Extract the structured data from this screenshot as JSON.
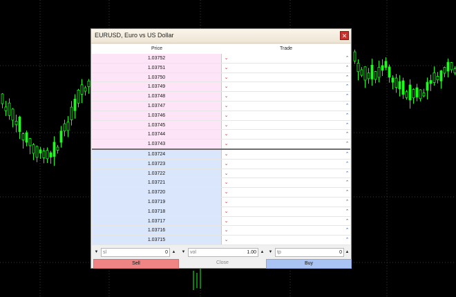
{
  "window": {
    "title": "EURUSD, Euro vs US Dollar",
    "close_glyph": "✕"
  },
  "grid": {
    "price_header": "Price",
    "trade_header": "Trade",
    "ask_prices": [
      "1.03752",
      "1.03751",
      "1.03750",
      "1.03749",
      "1.03748",
      "1.03747",
      "1.03746",
      "1.03745",
      "1.03744",
      "1.03743"
    ],
    "bid_prices": [
      "1.03724",
      "1.03723",
      "1.03722",
      "1.03721",
      "1.03720",
      "1.03719",
      "1.03718",
      "1.03717",
      "1.03716",
      "1.03715"
    ],
    "sell_arrow_glyph": "⌄",
    "buy_arrow_glyph": "⌃"
  },
  "controls": {
    "sl": {
      "label": "sl",
      "value": "0"
    },
    "vol": {
      "label": "vol",
      "value": "1.00"
    },
    "tp": {
      "label": "tp",
      "value": "0"
    },
    "down_glyph": "▼",
    "up_glyph": "▲"
  },
  "buttons": {
    "sell": "Sell",
    "close": "Close",
    "buy": "Buy"
  },
  "colors": {
    "ask_bg": "#fde4f6",
    "bid_bg": "#d9e6fb",
    "sell": "#f08484",
    "buy": "#a9c3f2",
    "candle": "#19ff19"
  }
}
